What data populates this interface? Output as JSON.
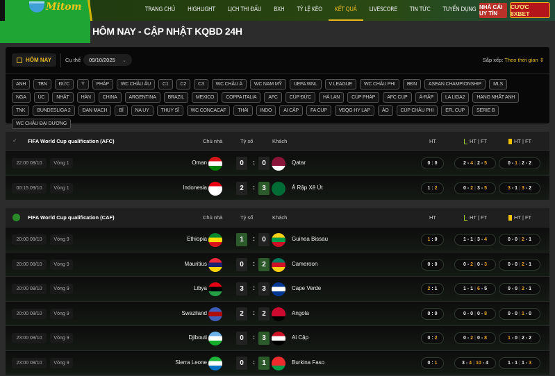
{
  "brand": {
    "logo_text": "Mitom"
  },
  "nav": {
    "items": [
      "TRANG CHỦ",
      "HIGHLIGHT",
      "LỊCH THI ĐẤU",
      "BXH",
      "TỶ LỆ KÈO",
      "KẾT QUẢ",
      "LIVESCORE",
      "TIN TỨC",
      "TUYỂN DỤNG"
    ],
    "active": "KẾT QUẢ",
    "nha_cai": "NHÀ CÁI UY TÍN",
    "cuoc": "CƯỢC 8XBET"
  },
  "page_title": "HÔM NAY - CẬP NHẬT KQBD 24H",
  "filter": {
    "today": "HÔM NAY",
    "specific_label": "Cụ thể",
    "date": "09/10/2025",
    "sort_label": "Sắp xếp:",
    "sort_value": "Theo thời gian"
  },
  "tags": [
    "ANH",
    "TBN",
    "ĐỨC",
    "Ý",
    "PHÁP",
    "WC CHÂU ÂU",
    "C1",
    "C2",
    "C3",
    "WC CHÂU Á",
    "WC NAM MỸ",
    "UEFA WNL",
    "V LEAGUE",
    "WC CHÂU PHI",
    "BĐN",
    "ASEAN CHAMPIONSHIP",
    "MLS",
    "NGA",
    "ÚC",
    "NHẬT",
    "HÀN",
    "CHINA",
    "ARGENTINA",
    "BRAZIL",
    "MEXICO",
    "COPPA ITALIA",
    "AFC",
    "CÚP ĐỨC",
    "HÀ LAN",
    "CÚP PHÁP",
    "AFC CUP",
    "Ả-RẬP",
    "LA LIGA2",
    "HẠNG NHẤT ANH",
    "TNK",
    "BUNDESLIGA 2",
    "ĐAN MẠCH",
    "BỈ",
    "NA UY",
    "THỤY SĨ",
    "WC CONCACAF",
    "THÁI",
    "INDO",
    "AI CẬP",
    "FA CUP",
    "VĐQG HY LẠP",
    "ÁO",
    "CÚP CHÂU PHI",
    "EFL CUP",
    "SERIE B",
    "WC CHÂU ĐẠI DƯƠNG"
  ],
  "columns": {
    "home": "Chủ nhà",
    "score": "Tỷ số",
    "away": "Khách",
    "ht": "HT",
    "corners": "HT | FT",
    "cards": "HT | FT"
  },
  "colors": {
    "accent": "#e8b823",
    "green": "#1fa533",
    "win_box": "#2d5a2b",
    "highlight": "#e8a020"
  },
  "sections": [
    {
      "league": "FIFA World Cup qualification (AFC)",
      "icon": "afc-logo-icon",
      "matches": [
        {
          "time": "22:00 08/10",
          "round": "Vòng 1",
          "home": "Oman",
          "away": "Qatar",
          "hs": 0,
          "as": 0,
          "ht": [
            0,
            0
          ],
          "corners": [
            [
              2,
              4
            ],
            [
              2,
              5
            ]
          ],
          "cards": [
            [
              0,
              1
            ],
            [
              2,
              2
            ]
          ],
          "hflag": [
            "#db161b",
            "#fff",
            "#008000"
          ],
          "aflag": [
            "#8a1538",
            "#8a1538",
            "#fff"
          ]
        },
        {
          "time": "00:15 09/10",
          "round": "Vòng 1",
          "home": "Indonesia",
          "away": "Ả Rập Xê Út",
          "hs": 2,
          "as": 3,
          "ht": [
            1,
            2
          ],
          "corners": [
            [
              0,
              2
            ],
            [
              3,
              5
            ]
          ],
          "cards": [
            [
              3,
              1
            ],
            [
              3,
              2
            ]
          ],
          "hflag": [
            "#e70011",
            "#fff",
            "#fff"
          ],
          "aflag": [
            "#006c35",
            "#006c35",
            "#006c35"
          ]
        }
      ]
    },
    {
      "league": "FIFA World Cup qualification (CAF)",
      "icon": "caf-logo-icon",
      "matches": [
        {
          "time": "20:00 08/10",
          "round": "Vòng 9",
          "home": "Ethiopia",
          "away": "Guinea Bissau",
          "hs": 1,
          "as": 0,
          "ht": [
            1,
            0
          ],
          "corners": [
            [
              1,
              1
            ],
            [
              3,
              4
            ]
          ],
          "cards": [
            [
              0,
              0
            ],
            [
              2,
              1
            ]
          ],
          "hflag": [
            "#078930",
            "#fcdd09",
            "#da121a"
          ],
          "aflag": [
            "#fcd116",
            "#009e49",
            "#ce1126"
          ]
        },
        {
          "time": "20:00 08/10",
          "round": "Vòng 9",
          "home": "Mauritius",
          "away": "Cameroon",
          "hs": 0,
          "as": 2,
          "ht": [
            0,
            0
          ],
          "corners": [
            [
              0,
              2
            ],
            [
              0,
              3
            ]
          ],
          "cards": [
            [
              0,
              0
            ],
            [
              2,
              1
            ]
          ],
          "hflag": [
            "#ea2839",
            "#1a206d",
            "#ffd500"
          ],
          "aflag": [
            "#007a5e",
            "#ce1126",
            "#fcd116"
          ]
        },
        {
          "time": "20:00 08/10",
          "round": "Vòng 9",
          "home": "Libya",
          "away": "Cape Verde",
          "hs": 3,
          "as": 3,
          "ht": [
            2,
            1
          ],
          "corners": [
            [
              1,
              1
            ],
            [
              6,
              5
            ]
          ],
          "cards": [
            [
              0,
              0
            ],
            [
              2,
              1
            ]
          ],
          "hflag": [
            "#e70013",
            "#000",
            "#239e46"
          ],
          "aflag": [
            "#003893",
            "#fff",
            "#003893"
          ]
        },
        {
          "time": "20:00 08/10",
          "round": "Vòng 9",
          "home": "Swaziland",
          "away": "Angola",
          "hs": 2,
          "as": 2,
          "ht": [
            0,
            0
          ],
          "corners": [
            [
              0,
              0
            ],
            [
              0,
              8
            ]
          ],
          "cards": [
            [
              0,
              0
            ],
            [
              1,
              0
            ]
          ],
          "hflag": [
            "#3e5eb9",
            "#b10c0c",
            "#3e5eb9"
          ],
          "aflag": [
            "#cc092f",
            "#cc092f",
            "#000"
          ]
        },
        {
          "time": "23:00 08/10",
          "round": "Vòng 9",
          "home": "Djibouti",
          "away": "Ai Cập",
          "hs": 0,
          "as": 3,
          "ht": [
            0,
            2
          ],
          "corners": [
            [
              0,
              2
            ],
            [
              0,
              8
            ]
          ],
          "cards": [
            [
              1,
              0
            ],
            [
              2,
              2
            ]
          ],
          "hflag": [
            "#6ab2e7",
            "#fff",
            "#12ad2b"
          ],
          "aflag": [
            "#ce1126",
            "#fff",
            "#000"
          ]
        },
        {
          "time": "23:00 08/10",
          "round": "Vòng 9",
          "home": "Sierra Leone",
          "away": "Burkina Faso",
          "hs": 0,
          "as": 1,
          "ht": [
            0,
            1
          ],
          "corners": [
            [
              3,
              4
            ],
            [
              10,
              4
            ]
          ],
          "cards": [
            [
              1,
              1
            ],
            [
              1,
              3
            ]
          ],
          "hflag": [
            "#1eb53a",
            "#fff",
            "#0072c6"
          ],
          "aflag": [
            "#ef2b2d",
            "#ef2b2d",
            "#009e49"
          ]
        }
      ]
    }
  ]
}
